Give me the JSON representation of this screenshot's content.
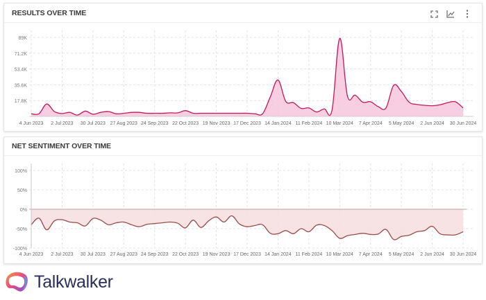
{
  "brand": {
    "name": "Talkwalker",
    "primary_color": "#2b2e5c"
  },
  "results_card": {
    "title": "RESULTS OVER TIME",
    "toolbar": [
      {
        "icon": "fullscreen-icon"
      },
      {
        "icon": "line-chart-icon"
      },
      {
        "icon": "more-vertical-icon"
      }
    ]
  },
  "sentiment_card": {
    "title": "NET SENTIMENT OVER TIME"
  },
  "chart_data": [
    {
      "type": "area",
      "title": "RESULTS OVER TIME",
      "xlabel": "",
      "ylabel": "",
      "ylim": [
        0,
        89000
      ],
      "yticks": [
        "17.8K",
        "35.6K",
        "53.4K",
        "71.2K",
        "89K"
      ],
      "ytick_values": [
        17800,
        35600,
        53400,
        71200,
        89000
      ],
      "xticks": [
        "4 Jun 2023",
        "2 Jul 2023",
        "30 Jul 2023",
        "27 Aug 2023",
        "24 Sep 2023",
        "22 Oct 2023",
        "19 Nov 2023",
        "17 Dec 2023",
        "14 Jan 2024",
        "11 Feb 2024",
        "10 Mar 2024",
        "7 Apr 2024",
        "5 May 2024",
        "2 Jun 2024",
        "30 Jun 2024"
      ],
      "grid": true,
      "legend": "none",
      "color": "#c2185b",
      "fill": "#f7c6dd",
      "series": [
        {
          "name": "Results",
          "x": [
            "4 Jun 2023",
            "11 Jun 2023",
            "18 Jun 2023",
            "25 Jun 2023",
            "2 Jul 2023",
            "9 Jul 2023",
            "16 Jul 2023",
            "23 Jul 2023",
            "30 Jul 2023",
            "6 Aug 2023",
            "13 Aug 2023",
            "20 Aug 2023",
            "27 Aug 2023",
            "3 Sep 2023",
            "10 Sep 2023",
            "17 Sep 2023",
            "24 Sep 2023",
            "1 Oct 2023",
            "8 Oct 2023",
            "15 Oct 2023",
            "22 Oct 2023",
            "29 Oct 2023",
            "5 Nov 2023",
            "12 Nov 2023",
            "19 Nov 2023",
            "26 Nov 2023",
            "3 Dec 2023",
            "10 Dec 2023",
            "17 Dec 2023",
            "24 Dec 2023",
            "31 Dec 2023",
            "7 Jan 2024",
            "14 Jan 2024",
            "21 Jan 2024",
            "28 Jan 2024",
            "4 Feb 2024",
            "11 Feb 2024",
            "18 Feb 2024",
            "25 Feb 2024",
            "3 Mar 2024",
            "10 Mar 2024",
            "17 Mar 2024",
            "24 Mar 2024",
            "31 Mar 2024",
            "7 Apr 2024",
            "14 Apr 2024",
            "21 Apr 2024",
            "28 Apr 2024",
            "5 May 2024",
            "12 May 2024",
            "19 May 2024",
            "26 May 2024",
            "2 Jun 2024",
            "9 Jun 2024",
            "16 Jun 2024",
            "23 Jun 2024",
            "30 Jun 2024"
          ],
          "values": [
            3000,
            3000,
            14000,
            5500,
            3200,
            4500,
            1500,
            6000,
            2500,
            4500,
            5500,
            3000,
            3500,
            4500,
            4500,
            3500,
            3500,
            3500,
            4000,
            4000,
            6500,
            3500,
            3500,
            3500,
            3500,
            3500,
            3500,
            3500,
            3500,
            3000,
            3000,
            22000,
            41000,
            17000,
            15500,
            9000,
            9500,
            5000,
            8500,
            7000,
            88000,
            23000,
            24000,
            16000,
            16500,
            11000,
            9500,
            35000,
            28000,
            16000,
            13500,
            12500,
            12000,
            13000,
            15500,
            16500,
            9500
          ]
        }
      ]
    },
    {
      "type": "area",
      "title": "NET SENTIMENT OVER TIME",
      "xlabel": "",
      "ylabel": "",
      "ylim": [
        -100,
        100
      ],
      "yticks": [
        "-100%",
        "-50%",
        "0%",
        "50%",
        "100%"
      ],
      "ytick_values": [
        -100,
        -50,
        0,
        50,
        100
      ],
      "xticks": [
        "4 Jun 2023",
        "2 Jul 2023",
        "30 Jul 2023",
        "27 Aug 2023",
        "24 Sep 2023",
        "22 Oct 2023",
        "19 Nov 2023",
        "17 Dec 2023",
        "14 Jan 2024",
        "11 Feb 2024",
        "10 Mar 2024",
        "7 Apr 2024",
        "5 May 2024",
        "2 Jun 2024",
        "30 Jun 2024"
      ],
      "grid": true,
      "legend": "none",
      "color": "#9c4a4a",
      "fill": "#f6dede",
      "series": [
        {
          "name": "Net sentiment",
          "x": [
            "4 Jun 2023",
            "11 Jun 2023",
            "18 Jun 2023",
            "25 Jun 2023",
            "2 Jul 2023",
            "9 Jul 2023",
            "16 Jul 2023",
            "23 Jul 2023",
            "30 Jul 2023",
            "6 Aug 2023",
            "13 Aug 2023",
            "20 Aug 2023",
            "27 Aug 2023",
            "3 Sep 2023",
            "10 Sep 2023",
            "17 Sep 2023",
            "24 Sep 2023",
            "1 Oct 2023",
            "8 Oct 2023",
            "15 Oct 2023",
            "22 Oct 2023",
            "29 Oct 2023",
            "5 Nov 2023",
            "12 Nov 2023",
            "19 Nov 2023",
            "26 Nov 2023",
            "3 Dec 2023",
            "10 Dec 2023",
            "17 Dec 2023",
            "24 Dec 2023",
            "31 Dec 2023",
            "7 Jan 2024",
            "14 Jan 2024",
            "21 Jan 2024",
            "28 Jan 2024",
            "4 Feb 2024",
            "11 Feb 2024",
            "18 Feb 2024",
            "25 Feb 2024",
            "3 Mar 2024",
            "10 Mar 2024",
            "17 Mar 2024",
            "24 Mar 2024",
            "31 Mar 2024",
            "7 Apr 2024",
            "14 Apr 2024",
            "21 Apr 2024",
            "28 Apr 2024",
            "5 May 2024",
            "12 May 2024",
            "19 May 2024",
            "26 May 2024",
            "2 Jun 2024",
            "9 Jun 2024",
            "16 Jun 2024",
            "23 Jun 2024",
            "30 Jun 2024"
          ],
          "values": [
            -40,
            -23,
            -53,
            -30,
            -27,
            -33,
            -35,
            -43,
            -24,
            -28,
            -40,
            -35,
            -33,
            -40,
            -45,
            -39,
            -37,
            -35,
            -33,
            -36,
            -48,
            -28,
            -47,
            -30,
            -20,
            -33,
            -17,
            -38,
            -45,
            -42,
            -40,
            -62,
            -63,
            -55,
            -63,
            -50,
            -58,
            -41,
            -42,
            -55,
            -75,
            -68,
            -65,
            -62,
            -65,
            -64,
            -52,
            -78,
            -70,
            -67,
            -58,
            -55,
            -44,
            -63,
            -66,
            -66,
            -58
          ]
        }
      ]
    }
  ]
}
